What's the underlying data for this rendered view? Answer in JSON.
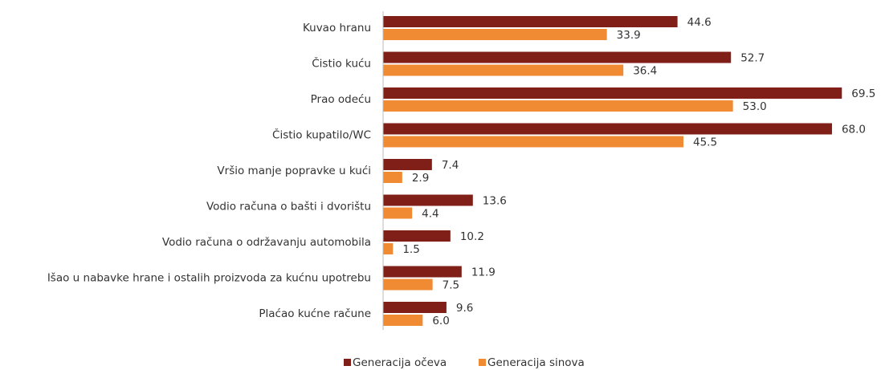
{
  "chart_data": {
    "type": "barh",
    "categories": [
      "Kuvao hranu",
      "Čistio kuću",
      "Prao odeću",
      "Čistio kupatilo/WC",
      "Vršio manje popravke u kući",
      "Vodio računa o bašti i dvorištu",
      "Vodio računa o održavanju automobila",
      "Išao u nabavke hrane i ostalih proizvoda za kućnu upotrebu",
      "Plaćao kućne račune"
    ],
    "series": [
      {
        "name": "Generacija očeva",
        "color": "#7f1f17",
        "values": [
          44.6,
          52.7,
          69.5,
          68.0,
          7.4,
          13.6,
          10.2,
          11.9,
          9.6
        ],
        "value_labels": [
          "44.6",
          "52.7",
          "69.5",
          "68.0",
          "7.4",
          "13.6",
          "10.2",
          "11.9",
          "9.6"
        ]
      },
      {
        "name": "Generacija sinova",
        "color": "#f08a33",
        "values": [
          33.9,
          36.4,
          53.0,
          45.5,
          2.9,
          4.4,
          1.5,
          7.5,
          6.0
        ],
        "value_labels": [
          "33.9",
          "36.4",
          "53.0",
          "45.5",
          "2.9",
          "4.4",
          "1.5",
          "7.5",
          "6.0"
        ]
      }
    ],
    "legend": "bottom"
  }
}
